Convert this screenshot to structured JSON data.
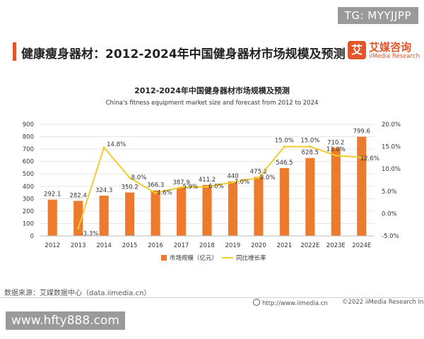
{
  "watermark_top": "TG: MYYJJPP",
  "header": {
    "title": "健康瘦身器材：2012-2024年中国健身器材市场规模及预测",
    "logo_mark": "艾",
    "logo_cn": "艾媒咨询",
    "logo_en": "iiMedia Research"
  },
  "chart_data": {
    "type": "bar",
    "title": "2012-2024年中国健身器材市场规模及预测",
    "subtitle": "China's fitness equipment market size and forecast from 2012 to 2024",
    "categories": [
      "2012",
      "2013",
      "2014",
      "2015",
      "2016",
      "2017",
      "2018",
      "2019",
      "2020",
      "2021",
      "2022E",
      "2023E",
      "2024E"
    ],
    "series": [
      {
        "name": "市场规模（亿元）",
        "type": "bar",
        "axis": "left",
        "color": "#ec7b2e",
        "values": [
          292.1,
          282.4,
          324.3,
          350.2,
          366.3,
          387.9,
          411.2,
          440,
          475.2,
          546.5,
          628.5,
          710.2,
          799.6
        ],
        "labels": [
          "292.1",
          "282.4",
          "324.3",
          "350.2",
          "366.3",
          "387.9",
          "411.2",
          "440",
          "475.2",
          "546.5",
          "628.5",
          "710.2",
          "799.6"
        ]
      },
      {
        "name": "同比增长率",
        "type": "line",
        "axis": "right",
        "color": "#f2cc2a",
        "values": [
          null,
          -3.3,
          14.8,
          8.0,
          4.6,
          5.9,
          6.0,
          7.0,
          8.0,
          15.0,
          15.0,
          13.0,
          12.6
        ],
        "labels": [
          "",
          "-3.3%",
          "14.8%",
          "8.0%",
          "4.6%",
          "5.9%",
          "6.0%",
          "7.0%",
          "8.0%",
          "15.0%",
          "15.0%",
          "13.0%",
          "12.6%"
        ]
      }
    ],
    "yleft": {
      "lim": [
        0,
        900
      ],
      "ticks": [
        "0",
        "100",
        "200",
        "300",
        "400",
        "500",
        "600",
        "700",
        "800",
        "900"
      ]
    },
    "yright": {
      "lim": [
        -5,
        20
      ],
      "ticks": [
        "-5.0%",
        "0.0%",
        "5.0%",
        "10.0%",
        "15.0%",
        "20.0%"
      ]
    },
    "grid": true,
    "legend_position": "bottom"
  },
  "source": "数据来源：艾媒数据中心（data.iimedia.cn）",
  "footer": {
    "url": "http://www.iimedia.cn",
    "copyright": "©2022  iiMedia Research  Inc"
  },
  "watermark_bottom": "www.hfty888.com"
}
